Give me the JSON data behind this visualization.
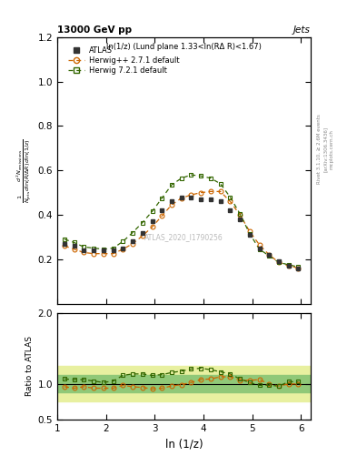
{
  "title_left": "13000 GeV pp",
  "title_right": "Jets",
  "plot_label": "ln(1/z) (Lund plane 1.33<ln(RΔ R)<1.67)",
  "watermark": "ATLAS_2020_I1790256",
  "xlabel": "ln (1/z)",
  "ylabel_ratio": "Ratio to ATLAS",
  "rivet_label": "Rivet 3.1.10, ≥ 2.6M events",
  "arxiv_label": "[arXiv:1306.3436]",
  "mcplots_label": "mcplots.cern.ch",
  "xlim": [
    1.0,
    6.2
  ],
  "ylim_main": [
    0.0,
    1.2
  ],
  "ylim_ratio": [
    0.5,
    2.0
  ],
  "yticks_main": [
    0.2,
    0.4,
    0.6,
    0.8,
    1.0,
    1.2
  ],
  "yticks_ratio": [
    0.5,
    1.0,
    2.0
  ],
  "atlas_x": [
    1.15,
    1.35,
    1.55,
    1.75,
    1.95,
    2.15,
    2.35,
    2.55,
    2.75,
    2.95,
    3.15,
    3.35,
    3.55,
    3.75,
    3.95,
    4.15,
    4.35,
    4.55,
    4.75,
    4.95,
    5.15,
    5.35,
    5.55,
    5.75,
    5.95
  ],
  "atlas_y": [
    0.27,
    0.26,
    0.24,
    0.24,
    0.24,
    0.24,
    0.25,
    0.28,
    0.32,
    0.37,
    0.42,
    0.46,
    0.48,
    0.48,
    0.47,
    0.47,
    0.46,
    0.42,
    0.38,
    0.31,
    0.25,
    0.22,
    0.19,
    0.17,
    0.16
  ],
  "herwig1_x": [
    1.15,
    1.35,
    1.55,
    1.75,
    1.95,
    2.15,
    2.35,
    2.55,
    2.75,
    2.95,
    3.15,
    3.35,
    3.55,
    3.75,
    3.95,
    4.15,
    4.35,
    4.55,
    4.75,
    4.95,
    5.15,
    5.35,
    5.55,
    5.75,
    5.95
  ],
  "herwig1_y": [
    0.26,
    0.245,
    0.23,
    0.225,
    0.225,
    0.225,
    0.245,
    0.27,
    0.305,
    0.345,
    0.395,
    0.445,
    0.475,
    0.49,
    0.5,
    0.505,
    0.505,
    0.46,
    0.4,
    0.325,
    0.265,
    0.22,
    0.185,
    0.17,
    0.16
  ],
  "herwig2_x": [
    1.15,
    1.35,
    1.55,
    1.75,
    1.95,
    2.15,
    2.35,
    2.55,
    2.75,
    2.95,
    3.15,
    3.35,
    3.55,
    3.75,
    3.95,
    4.15,
    4.35,
    4.55,
    4.75,
    4.95,
    5.15,
    5.35,
    5.55,
    5.75,
    5.95
  ],
  "herwig2_y": [
    0.29,
    0.275,
    0.255,
    0.25,
    0.245,
    0.25,
    0.28,
    0.32,
    0.365,
    0.415,
    0.475,
    0.535,
    0.565,
    0.58,
    0.575,
    0.565,
    0.54,
    0.48,
    0.405,
    0.315,
    0.245,
    0.215,
    0.185,
    0.175,
    0.165
  ],
  "ratio_herwig1_y": [
    0.96,
    0.94,
    0.96,
    0.94,
    0.94,
    0.94,
    0.98,
    0.96,
    0.95,
    0.93,
    0.94,
    0.97,
    0.99,
    1.02,
    1.06,
    1.07,
    1.1,
    1.1,
    1.05,
    1.05,
    1.06,
    1.0,
    0.97,
    1.0,
    1.0
  ],
  "ratio_herwig2_y": [
    1.07,
    1.06,
    1.06,
    1.04,
    1.02,
    1.04,
    1.12,
    1.14,
    1.14,
    1.12,
    1.13,
    1.16,
    1.18,
    1.21,
    1.22,
    1.2,
    1.17,
    1.14,
    1.07,
    1.02,
    0.98,
    0.98,
    0.97,
    1.03,
    1.03
  ],
  "atlas_color": "#333333",
  "herwig1_color": "#cc6600",
  "herwig2_color": "#336600",
  "band_outer_color": "#e8f0a0",
  "band_inner_color": "#90c878",
  "atlas_marker": "s",
  "herwig1_marker": "o",
  "herwig2_marker": "s",
  "markersize": 3.5,
  "linewidth": 0.9
}
